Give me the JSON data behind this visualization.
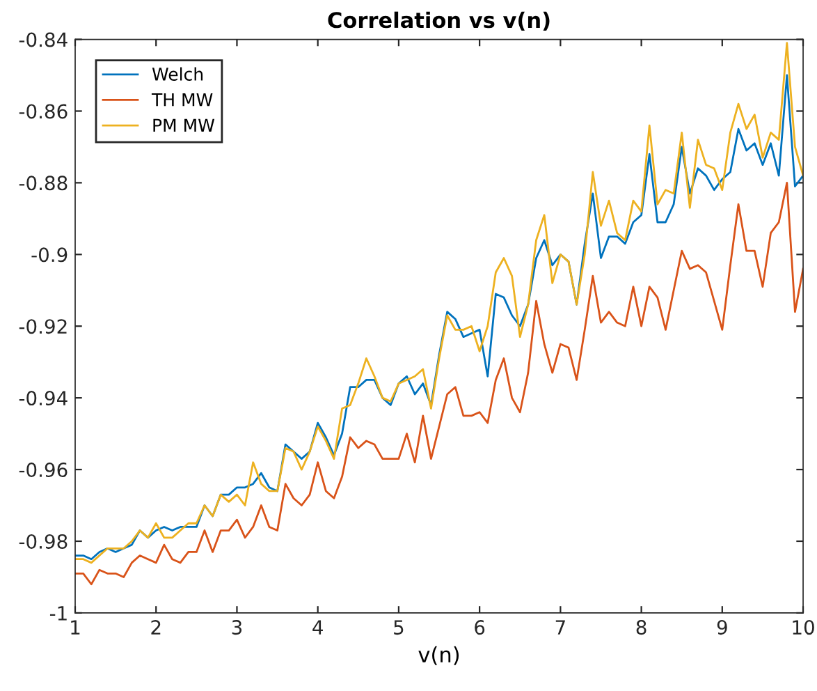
{
  "chart_data": {
    "type": "line",
    "title": "Correlation vs v(n)",
    "xlabel": "v(n)",
    "x": [
      1,
      1.1,
      1.2,
      1.3,
      1.4,
      1.5,
      1.6,
      1.7,
      1.8,
      1.9,
      2,
      2.1,
      2.2,
      2.3,
      2.4,
      2.5,
      2.6,
      2.7,
      2.8,
      2.9,
      3,
      3.1,
      3.2,
      3.3,
      3.4,
      3.5,
      3.6,
      3.7,
      3.8,
      3.9,
      4,
      4.1,
      4.2,
      4.3,
      4.4,
      4.5,
      4.6,
      4.7,
      4.8,
      4.9,
      5,
      5.1,
      5.2,
      5.3,
      5.4,
      5.5,
      5.6,
      5.7,
      5.8,
      5.9,
      6,
      6.1,
      6.2,
      6.3,
      6.4,
      6.5,
      6.6,
      6.7,
      6.8,
      6.9,
      7,
      7.1,
      7.2,
      7.3,
      7.4,
      7.5,
      7.6,
      7.7,
      7.8,
      7.9,
      8,
      8.1,
      8.2,
      8.3,
      8.4,
      8.5,
      8.6,
      8.7,
      8.8,
      8.9,
      9,
      9.1,
      9.2,
      9.3,
      9.4,
      9.5,
      9.6,
      9.7,
      9.8,
      9.9,
      10
    ],
    "series": [
      {
        "name": "Welch",
        "color": "#0072bd",
        "values": [
          -0.984,
          -0.984,
          -0.985,
          -0.983,
          -0.982,
          -0.983,
          -0.982,
          -0.981,
          -0.977,
          -0.979,
          -0.977,
          -0.976,
          -0.977,
          -0.976,
          -0.976,
          -0.976,
          -0.97,
          -0.973,
          -0.967,
          -0.967,
          -0.965,
          -0.965,
          -0.964,
          -0.961,
          -0.965,
          -0.966,
          -0.953,
          -0.955,
          -0.957,
          -0.955,
          -0.947,
          -0.951,
          -0.956,
          -0.95,
          -0.937,
          -0.937,
          -0.935,
          -0.935,
          -0.94,
          -0.942,
          -0.936,
          -0.934,
          -0.939,
          -0.936,
          -0.942,
          -0.928,
          -0.916,
          -0.918,
          -0.923,
          -0.922,
          -0.921,
          -0.934,
          -0.911,
          -0.912,
          -0.917,
          -0.92,
          -0.914,
          -0.901,
          -0.896,
          -0.903,
          -0.9,
          -0.902,
          -0.914,
          -0.897,
          -0.883,
          -0.901,
          -0.895,
          -0.895,
          -0.897,
          -0.891,
          -0.889,
          -0.872,
          -0.891,
          -0.891,
          -0.886,
          -0.87,
          -0.883,
          -0.876,
          -0.878,
          -0.882,
          -0.879,
          -0.877,
          -0.865,
          -0.871,
          -0.869,
          -0.875,
          -0.869,
          -0.878,
          -0.85,
          -0.881,
          -0.878
        ]
      },
      {
        "name": "TH MW",
        "color": "#d95319",
        "values": [
          -0.989,
          -0.989,
          -0.992,
          -0.988,
          -0.989,
          -0.989,
          -0.99,
          -0.986,
          -0.984,
          -0.985,
          -0.986,
          -0.981,
          -0.985,
          -0.986,
          -0.983,
          -0.983,
          -0.977,
          -0.983,
          -0.977,
          -0.977,
          -0.974,
          -0.979,
          -0.976,
          -0.97,
          -0.976,
          -0.977,
          -0.964,
          -0.968,
          -0.97,
          -0.967,
          -0.958,
          -0.966,
          -0.968,
          -0.962,
          -0.951,
          -0.954,
          -0.952,
          -0.953,
          -0.957,
          -0.957,
          -0.957,
          -0.95,
          -0.958,
          -0.945,
          -0.957,
          -0.948,
          -0.939,
          -0.937,
          -0.945,
          -0.945,
          -0.944,
          -0.947,
          -0.935,
          -0.929,
          -0.94,
          -0.944,
          -0.933,
          -0.913,
          -0.925,
          -0.933,
          -0.925,
          -0.926,
          -0.935,
          -0.921,
          -0.906,
          -0.919,
          -0.916,
          -0.919,
          -0.92,
          -0.909,
          -0.92,
          -0.909,
          -0.912,
          -0.921,
          -0.91,
          -0.899,
          -0.904,
          -0.903,
          -0.905,
          -0.913,
          -0.921,
          -0.903,
          -0.886,
          -0.899,
          -0.899,
          -0.909,
          -0.894,
          -0.891,
          -0.88,
          -0.916,
          -0.904
        ]
      },
      {
        "name": "PM MW",
        "color": "#edb120",
        "values": [
          -0.985,
          -0.985,
          -0.986,
          -0.984,
          -0.982,
          -0.982,
          -0.982,
          -0.98,
          -0.977,
          -0.979,
          -0.975,
          -0.979,
          -0.979,
          -0.977,
          -0.975,
          -0.975,
          -0.97,
          -0.973,
          -0.967,
          -0.969,
          -0.967,
          -0.97,
          -0.958,
          -0.964,
          -0.966,
          -0.966,
          -0.954,
          -0.955,
          -0.96,
          -0.955,
          -0.948,
          -0.952,
          -0.957,
          -0.943,
          -0.942,
          -0.936,
          -0.929,
          -0.934,
          -0.94,
          -0.941,
          -0.936,
          -0.935,
          -0.934,
          -0.932,
          -0.943,
          -0.929,
          -0.917,
          -0.921,
          -0.921,
          -0.92,
          -0.927,
          -0.92,
          -0.905,
          -0.901,
          -0.906,
          -0.923,
          -0.914,
          -0.896,
          -0.889,
          -0.908,
          -0.9,
          -0.902,
          -0.914,
          -0.9,
          -0.877,
          -0.892,
          -0.885,
          -0.894,
          -0.896,
          -0.885,
          -0.888,
          -0.864,
          -0.886,
          -0.882,
          -0.883,
          -0.866,
          -0.887,
          -0.868,
          -0.875,
          -0.876,
          -0.882,
          -0.866,
          -0.858,
          -0.865,
          -0.861,
          -0.873,
          -0.866,
          -0.868,
          -0.841,
          -0.87,
          -0.878
        ]
      }
    ],
    "xlim": [
      1,
      10
    ],
    "xticks": [
      1,
      2,
      3,
      4,
      5,
      6,
      7,
      8,
      9,
      10
    ],
    "ylim": [
      -1,
      -0.84
    ],
    "yticks": [
      -1,
      -0.98,
      -0.96,
      -0.94,
      -0.92,
      -0.9,
      -0.88,
      -0.86,
      -0.84
    ],
    "legend": "top left",
    "grid": false,
    "marker": "none",
    "line_style": "solid"
  }
}
